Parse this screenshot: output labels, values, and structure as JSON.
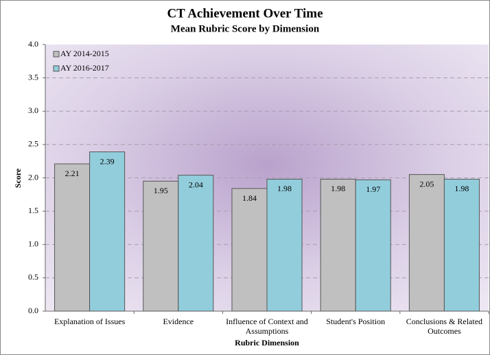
{
  "chart_data": {
    "type": "bar",
    "title": "CT Achievement Over Time",
    "subtitle": "Mean Rubric Score by Dimension",
    "x_label": "Rubric Dimension",
    "y_label": "Score",
    "categories": [
      "Explanation of Issues",
      "Evidence",
      "Influence of Context and Assumptions",
      "Student's Position",
      "Conclusions & Related Outcomes"
    ],
    "series": [
      {
        "name": "AY 2014-2015",
        "color": "#c0c0c0",
        "values": [
          2.21,
          1.95,
          1.84,
          1.98,
          2.05
        ]
      },
      {
        "name": "AY 2016-2017",
        "color": "#92cddc",
        "values": [
          2.39,
          2.04,
          1.98,
          1.97,
          1.98
        ]
      }
    ],
    "ylim": [
      0,
      4
    ],
    "yticks": [
      {
        "value": 0,
        "label": "0.0"
      },
      {
        "value": 0.5,
        "label": "0.5"
      },
      {
        "value": 1,
        "label": "1.0"
      },
      {
        "value": 1.5,
        "label": "1.5"
      },
      {
        "value": 2,
        "label": "2.0"
      },
      {
        "value": 2.5,
        "label": "2.5"
      },
      {
        "value": 3,
        "label": "3.0"
      },
      {
        "value": 3.5,
        "label": "3.5"
      },
      {
        "value": 4,
        "label": "4.0"
      }
    ],
    "grid": true,
    "legend": "top-left"
  }
}
